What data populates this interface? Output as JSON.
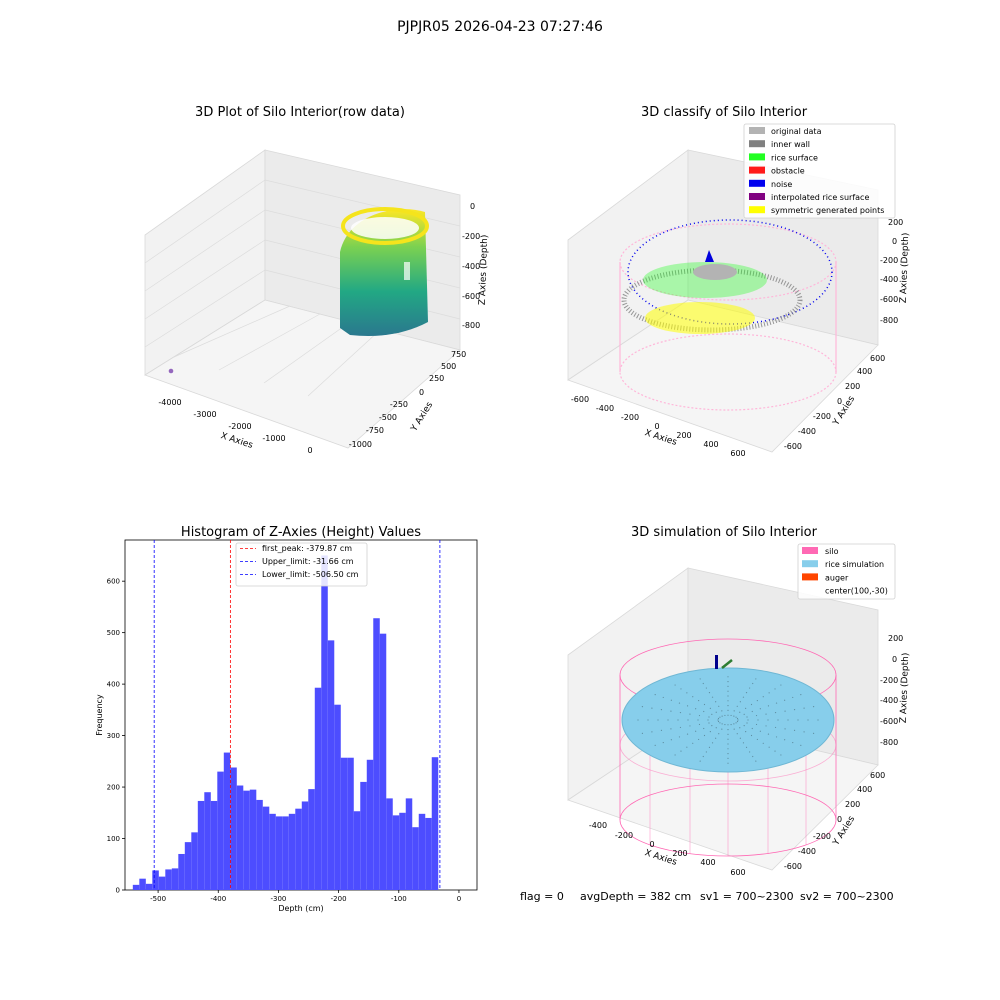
{
  "figure": {
    "suptitle": "PJPJR05 2026-04-23 07:27:46",
    "footer": {
      "flag": "flag = 0",
      "avg_depth": "avgDepth = 382 cm",
      "sv1": "sv1 = 700~2300",
      "sv2": "sv2 = 700~2300"
    }
  },
  "chart_data": [
    {
      "type": "scatter",
      "title": "3D Plot of Silo Interior(row data)",
      "xlabel": "X Axies",
      "ylabel": "Y Axies",
      "zlabel": "Z Axies (Depth)",
      "x_ticks": [
        "-4000",
        "-3000",
        "-2000",
        "-1000",
        "0"
      ],
      "y_ticks": [
        "-1000",
        "-750",
        "-500",
        "-250",
        "0",
        "250",
        "500",
        "750"
      ],
      "z_ticks": [
        "-800",
        "-600",
        "-400",
        "-200",
        "0"
      ],
      "xlim": [
        -4300,
        600
      ],
      "ylim": [
        -1100,
        800
      ],
      "zlim": [
        -900,
        50
      ],
      "colormap": "viridis",
      "outlier_point": {
        "x": -4200,
        "y": -1000,
        "z": -50,
        "color": "#9467bd"
      }
    },
    {
      "type": "scatter",
      "title": "3D classify of Silo Interior",
      "xlabel": "X Axies",
      "ylabel": "Y Axies",
      "zlabel": "Z Axies (Depth)",
      "x_ticks": [
        "-600",
        "-400",
        "-200",
        "0",
        "200",
        "400",
        "600"
      ],
      "y_ticks": [
        "-600",
        "-400",
        "-200",
        "0",
        "200",
        "400",
        "600"
      ],
      "z_ticks": [
        "-800",
        "-600",
        "-400",
        "-200",
        "0",
        "200"
      ],
      "legend": {
        "position": "upper-right",
        "entries": [
          {
            "label": "original data",
            "color": "#b3b3b3"
          },
          {
            "label": "inner wall",
            "color": "#808080"
          },
          {
            "label": "rice surface",
            "color": "#22ff22"
          },
          {
            "label": "obstacle",
            "color": "#ff1a1a"
          },
          {
            "label": "noise",
            "color": "#0000ee"
          },
          {
            "label": "interpolated rice surface",
            "color": "#800080"
          },
          {
            "label": "symmetric generated points",
            "color": "#ffff00"
          }
        ]
      }
    },
    {
      "type": "bar",
      "title": "Histogram of Z-Axies (Height) Values",
      "xlabel": "Depth (cm)",
      "ylabel": "Frequency",
      "xlim": [
        -555,
        30
      ],
      "ylim": [
        0,
        680
      ],
      "x_ticks": [
        -500,
        -400,
        -300,
        -200,
        -100,
        0
      ],
      "y_ticks": [
        0,
        100,
        200,
        300,
        400,
        500,
        600
      ],
      "bar_color": "#4d4dff",
      "bin_start": -542,
      "bin_width": 10.8,
      "values": [
        10,
        22,
        12,
        38,
        26,
        40,
        42,
        70,
        93,
        112,
        173,
        190,
        173,
        230,
        267,
        238,
        203,
        193,
        195,
        175,
        162,
        148,
        143,
        143,
        148,
        158,
        172,
        196,
        393,
        650,
        485,
        360,
        257,
        257,
        153,
        210,
        253,
        528,
        498,
        178,
        145,
        150,
        178,
        122,
        148,
        140,
        258
      ],
      "legend": {
        "position": "top-center",
        "entries": [
          {
            "label": "first_peak: -379.87 cm",
            "color": "#ff0000",
            "value": -379.87
          },
          {
            "label": "Upper_limit: -31.66 cm",
            "color": "#0000ff",
            "value": -31.66
          },
          {
            "label": "Lower_limit: -506.50 cm",
            "color": "#0000ff",
            "value": -506.5
          }
        ]
      }
    },
    {
      "type": "scatter",
      "title": "3D simulation of Silo Interior",
      "xlabel": "X Axies",
      "ylabel": "Y Axies",
      "zlabel": "Z Axies (Depth)",
      "x_ticks": [
        "-400",
        "-200",
        "0",
        "200",
        "400",
        "600"
      ],
      "y_ticks": [
        "-600",
        "-400",
        "-200",
        "0",
        "200",
        "400",
        "600"
      ],
      "z_ticks": [
        "-800",
        "-600",
        "-400",
        "-200",
        "0",
        "200"
      ],
      "legend": {
        "position": "upper-right",
        "entries": [
          {
            "label": "silo",
            "color": "#ff69b4"
          },
          {
            "label": "rice simulation",
            "color": "#87ceeb"
          },
          {
            "label": "auger",
            "color": "#ff4500"
          },
          {
            "label": "center(100,-30)",
            "color": ""
          }
        ]
      }
    }
  ]
}
